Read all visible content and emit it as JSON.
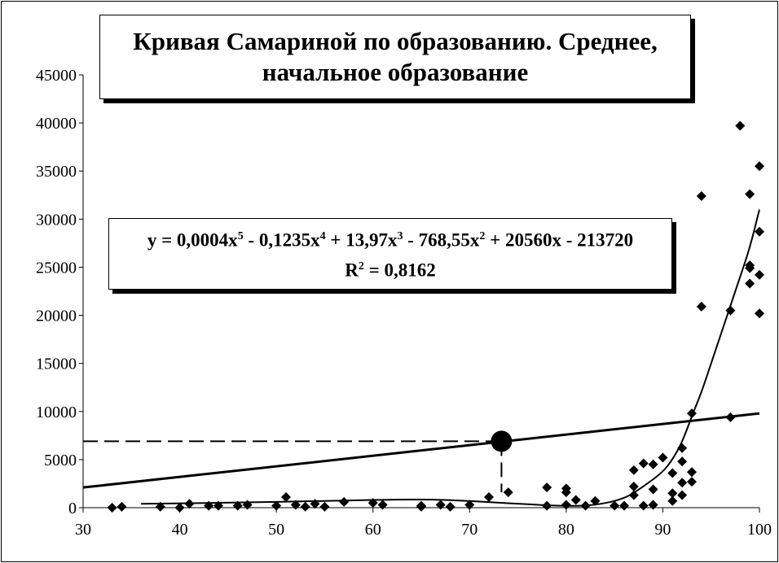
{
  "chart_data": {
    "type": "scatter",
    "title_lines": [
      "Кривая Самариной по образованию. Среднее,",
      "начальное образование"
    ],
    "xlabel": "",
    "ylabel": "",
    "xlim": [
      30,
      100
    ],
    "ylim": [
      0,
      45000
    ],
    "x_ticks": [
      "30",
      "40",
      "50",
      "60",
      "70",
      "80",
      "90",
      "100"
    ],
    "y_ticks": [
      "0",
      "5000",
      "10000",
      "15000",
      "20000",
      "25000",
      "30000",
      "35000",
      "40000",
      "45000"
    ],
    "grid": false,
    "marker": "diamond",
    "colors": {
      "marker": "#000000",
      "line": "#000000"
    },
    "points": [
      [
        33,
        0
      ],
      [
        34,
        100
      ],
      [
        38,
        100
      ],
      [
        40,
        0
      ],
      [
        41,
        400
      ],
      [
        43,
        200
      ],
      [
        44,
        200
      ],
      [
        46,
        200
      ],
      [
        47,
        300
      ],
      [
        50,
        200
      ],
      [
        51,
        1100
      ],
      [
        52,
        300
      ],
      [
        53,
        100
      ],
      [
        54,
        400
      ],
      [
        55,
        100
      ],
      [
        57,
        600
      ],
      [
        60,
        500
      ],
      [
        61,
        300
      ],
      [
        65,
        200
      ],
      [
        65,
        100
      ],
      [
        67,
        300
      ],
      [
        68,
        100
      ],
      [
        70,
        300
      ],
      [
        72,
        1100
      ],
      [
        74,
        1600
      ],
      [
        78,
        2100
      ],
      [
        78,
        200
      ],
      [
        80,
        2000
      ],
      [
        80,
        1600
      ],
      [
        80,
        300
      ],
      [
        81,
        800
      ],
      [
        82,
        200
      ],
      [
        83,
        700
      ],
      [
        85,
        200
      ],
      [
        86,
        200
      ],
      [
        87,
        3900
      ],
      [
        87,
        2200
      ],
      [
        87,
        1300
      ],
      [
        88,
        4600
      ],
      [
        88,
        200
      ],
      [
        89,
        4500
      ],
      [
        89,
        1900
      ],
      [
        89,
        300
      ],
      [
        90,
        5200
      ],
      [
        91,
        3600
      ],
      [
        91,
        1500
      ],
      [
        91,
        700
      ],
      [
        92,
        6200
      ],
      [
        92,
        4800
      ],
      [
        92,
        2600
      ],
      [
        92,
        1300
      ],
      [
        93,
        9800
      ],
      [
        93,
        3700
      ],
      [
        93,
        2700
      ],
      [
        94,
        32400
      ],
      [
        94,
        20900
      ],
      [
        97,
        20500
      ],
      [
        97,
        9400
      ],
      [
        98,
        39700
      ],
      [
        99,
        32600
      ],
      [
        99,
        25200
      ],
      [
        99,
        24900
      ],
      [
        99,
        23300
      ],
      [
        100,
        35500
      ],
      [
        100,
        28700
      ],
      [
        100,
        24200
      ],
      [
        100,
        20200
      ]
    ],
    "polynomial_trendline": {
      "equation_parts": {
        "prefix": "y = 0,0004x",
        "e1": "5",
        "p2": " - 0,1235x",
        "e2": "4",
        "p3": " + 13,97x",
        "e3": "3",
        "p4": " - 768,55x",
        "e4": "2",
        "p5": " + 20560x - 213720"
      },
      "r2_prefix": "R",
      "r2_exp": "2",
      "r2_value": " = 0,8162",
      "approx_curve": [
        [
          36,
          400
        ],
        [
          45,
          500
        ],
        [
          55,
          700
        ],
        [
          65,
          900
        ],
        [
          70,
          700
        ],
        [
          75,
          400
        ],
        [
          80,
          150
        ],
        [
          83,
          250
        ],
        [
          86,
          900
        ],
        [
          88,
          2200
        ],
        [
          90,
          3700
        ],
        [
          91,
          5000
        ],
        [
          92,
          6800
        ],
        [
          93,
          9500
        ],
        [
          94,
          12000
        ],
        [
          95,
          15000
        ],
        [
          96,
          18000
        ],
        [
          97,
          21000
        ],
        [
          98,
          24000
        ],
        [
          99,
          27000
        ],
        [
          100,
          31000
        ]
      ]
    },
    "linear_line": [
      [
        30,
        2100
      ],
      [
        100,
        9800
      ]
    ],
    "highlight_point": [
      73.3,
      6900
    ]
  }
}
